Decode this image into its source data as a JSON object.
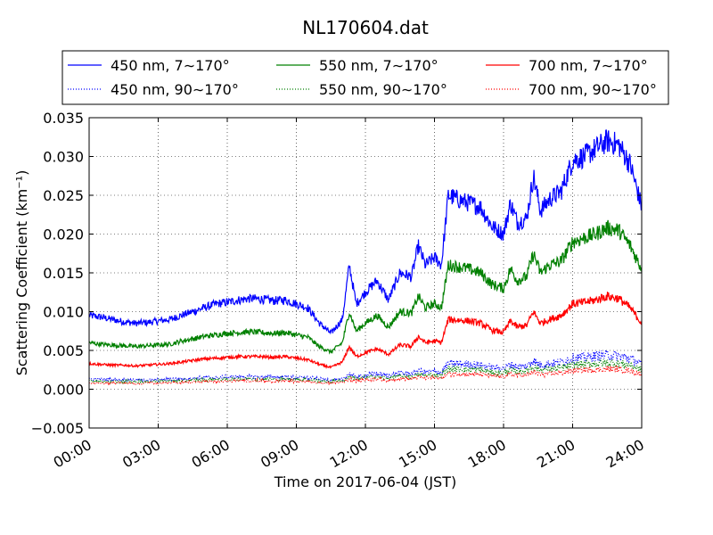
{
  "chart_data": {
    "type": "line",
    "title": "NL170604.dat",
    "xlabel": "Time on 2017-06-04 (JST)",
    "ylabel": "Scattering Coefficient (km⁻¹)",
    "xlim": [
      0,
      24
    ],
    "ylim": [
      -0.005,
      0.035
    ],
    "grid": true,
    "legend_position": "top, above plot, 3 columns",
    "x_ticks": [
      "00:00",
      "03:00",
      "06:00",
      "09:00",
      "12:00",
      "15:00",
      "18:00",
      "21:00",
      "24:00"
    ],
    "y_ticks": [
      "−0.005",
      "0.000",
      "0.005",
      "0.010",
      "0.015",
      "0.020",
      "0.025",
      "0.030",
      "0.035"
    ],
    "x_hours": [
      0,
      0.5,
      1,
      1.5,
      2,
      2.5,
      3,
      3.5,
      4,
      4.5,
      5,
      5.5,
      6,
      6.5,
      7,
      7.5,
      8,
      8.5,
      9,
      9.5,
      10,
      10.5,
      11,
      11.3,
      11.6,
      12,
      12.5,
      13,
      13.5,
      14,
      14.3,
      14.6,
      15,
      15.3,
      15.6,
      16,
      16.5,
      17,
      17.5,
      18,
      18.3,
      18.6,
      19,
      19.3,
      19.6,
      20,
      20.5,
      21,
      21.5,
      22,
      22.5,
      23,
      23.5,
      24
    ],
    "series": [
      {
        "name": "450 nm, 7∼170°",
        "color": "#0000ff",
        "style": "solid",
        "values": [
          0.0095,
          0.0093,
          0.009,
          0.0087,
          0.0085,
          0.0086,
          0.0088,
          0.009,
          0.0095,
          0.01,
          0.0105,
          0.011,
          0.0112,
          0.0115,
          0.0117,
          0.0116,
          0.0114,
          0.0115,
          0.011,
          0.0105,
          0.0085,
          0.0072,
          0.009,
          0.016,
          0.011,
          0.0125,
          0.014,
          0.0115,
          0.015,
          0.0145,
          0.0185,
          0.016,
          0.017,
          0.016,
          0.025,
          0.0245,
          0.024,
          0.0235,
          0.021,
          0.02,
          0.024,
          0.0215,
          0.022,
          0.0275,
          0.023,
          0.0245,
          0.0255,
          0.0295,
          0.03,
          0.031,
          0.032,
          0.0315,
          0.029,
          0.0235
        ]
      },
      {
        "name": "550 nm, 7∼170°",
        "color": "#008000",
        "style": "solid",
        "values": [
          0.006,
          0.0058,
          0.0057,
          0.0056,
          0.0055,
          0.0056,
          0.0057,
          0.0058,
          0.0062,
          0.0065,
          0.0068,
          0.007,
          0.0072,
          0.0073,
          0.0074,
          0.0073,
          0.0072,
          0.0073,
          0.007,
          0.0067,
          0.0055,
          0.0048,
          0.006,
          0.01,
          0.0075,
          0.0085,
          0.0095,
          0.008,
          0.01,
          0.0098,
          0.012,
          0.0105,
          0.011,
          0.0105,
          0.016,
          0.0158,
          0.0155,
          0.015,
          0.0135,
          0.013,
          0.0155,
          0.014,
          0.0145,
          0.0175,
          0.015,
          0.016,
          0.0165,
          0.019,
          0.0195,
          0.02,
          0.0208,
          0.0205,
          0.0185,
          0.0155
        ]
      },
      {
        "name": "700 nm, 7∼170°",
        "color": "#ff0000",
        "style": "solid",
        "values": [
          0.0033,
          0.0032,
          0.0031,
          0.0031,
          0.003,
          0.0031,
          0.0032,
          0.0033,
          0.0035,
          0.0037,
          0.0039,
          0.004,
          0.0041,
          0.0042,
          0.0042,
          0.0042,
          0.0041,
          0.0042,
          0.004,
          0.0038,
          0.0032,
          0.0028,
          0.0035,
          0.0055,
          0.0042,
          0.0047,
          0.0052,
          0.0045,
          0.0057,
          0.0055,
          0.0068,
          0.006,
          0.0062,
          0.006,
          0.009,
          0.0089,
          0.0088,
          0.0085,
          0.0076,
          0.0073,
          0.0088,
          0.008,
          0.0082,
          0.01,
          0.0085,
          0.009,
          0.0095,
          0.011,
          0.0112,
          0.0115,
          0.012,
          0.0117,
          0.0105,
          0.0085
        ]
      },
      {
        "name": "450 nm, 90∼170°",
        "color": "#0000ff",
        "style": "dotted",
        "values": [
          0.0013,
          0.0013,
          0.0012,
          0.0012,
          0.0012,
          0.0012,
          0.0012,
          0.0013,
          0.0013,
          0.0014,
          0.0015,
          0.0015,
          0.0016,
          0.0016,
          0.0016,
          0.0016,
          0.0016,
          0.0016,
          0.0015,
          0.0015,
          0.0013,
          0.0012,
          0.0013,
          0.002,
          0.0016,
          0.0018,
          0.002,
          0.0017,
          0.0021,
          0.002,
          0.0024,
          0.0022,
          0.0023,
          0.0022,
          0.0033,
          0.0033,
          0.0032,
          0.0031,
          0.0028,
          0.0027,
          0.0032,
          0.0029,
          0.003,
          0.0037,
          0.0031,
          0.0033,
          0.0035,
          0.004,
          0.0041,
          0.0043,
          0.0044,
          0.0043,
          0.004,
          0.0032
        ]
      },
      {
        "name": "550 nm, 90∼170°",
        "color": "#008000",
        "style": "dotted",
        "values": [
          0.0011,
          0.001,
          0.001,
          0.001,
          0.001,
          0.001,
          0.001,
          0.0011,
          0.0011,
          0.0012,
          0.0012,
          0.0013,
          0.0013,
          0.0013,
          0.0014,
          0.0013,
          0.0013,
          0.0013,
          0.0013,
          0.0012,
          0.0011,
          0.001,
          0.0011,
          0.0016,
          0.0013,
          0.0015,
          0.0016,
          0.0014,
          0.0017,
          0.0016,
          0.0019,
          0.0018,
          0.0018,
          0.0018,
          0.0026,
          0.0026,
          0.0025,
          0.0025,
          0.0022,
          0.0021,
          0.0025,
          0.0023,
          0.0024,
          0.0029,
          0.0025,
          0.0026,
          0.0027,
          0.0031,
          0.0032,
          0.0033,
          0.0034,
          0.0033,
          0.0031,
          0.0025
        ]
      },
      {
        "name": "700 nm, 90∼170°",
        "color": "#ff0000",
        "style": "dotted",
        "values": [
          0.0008,
          0.0008,
          0.0008,
          0.0008,
          0.0007,
          0.0008,
          0.0008,
          0.0008,
          0.0009,
          0.0009,
          0.001,
          0.001,
          0.001,
          0.0011,
          0.0011,
          0.0011,
          0.001,
          0.0011,
          0.001,
          0.001,
          0.0008,
          0.0008,
          0.0009,
          0.0013,
          0.0011,
          0.0012,
          0.0013,
          0.0011,
          0.0014,
          0.0013,
          0.0016,
          0.0014,
          0.0015,
          0.0014,
          0.002,
          0.002,
          0.0019,
          0.0019,
          0.0017,
          0.0016,
          0.0019,
          0.0018,
          0.0018,
          0.0022,
          0.0019,
          0.002,
          0.0021,
          0.0024,
          0.0025,
          0.0025,
          0.0026,
          0.0026,
          0.0024,
          0.0019
        ]
      }
    ],
    "legend_order": [
      0,
      1,
      2,
      3,
      4,
      5
    ]
  }
}
